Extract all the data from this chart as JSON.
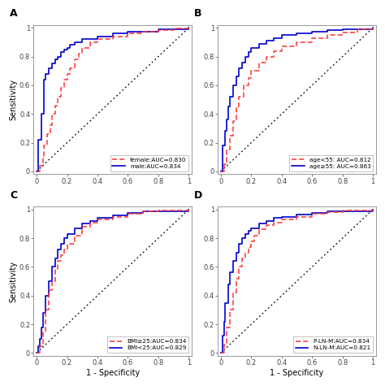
{
  "panel_titles": [
    "A",
    "B",
    "C",
    "D"
  ],
  "legends": [
    [
      "female:AUC=0.830",
      "male:AUC=0.834"
    ],
    [
      "age<55: AUC=0.812",
      "age≥55: AUC=0.863"
    ],
    [
      "BMI≥25:AUC=0.834",
      "BMI<25:AUC=0.829"
    ],
    [
      "P-LN-M:AUC=0.834",
      "N-LN-M:AUC=0.821"
    ]
  ],
  "xlabel": "1 - Specificity",
  "ylabel": "Sensitivity",
  "red_color": "#FF3333",
  "blue_color": "#0000CC",
  "diag_color": "#000000",
  "bg_color": "#FFFFFF",
  "tick_vals": [
    0.0,
    0.2,
    0.4,
    0.6,
    0.8,
    1.0
  ],
  "tick_labels": [
    "0",
    "0.2",
    "0.4",
    "0.6",
    "0.8",
    "1"
  ]
}
